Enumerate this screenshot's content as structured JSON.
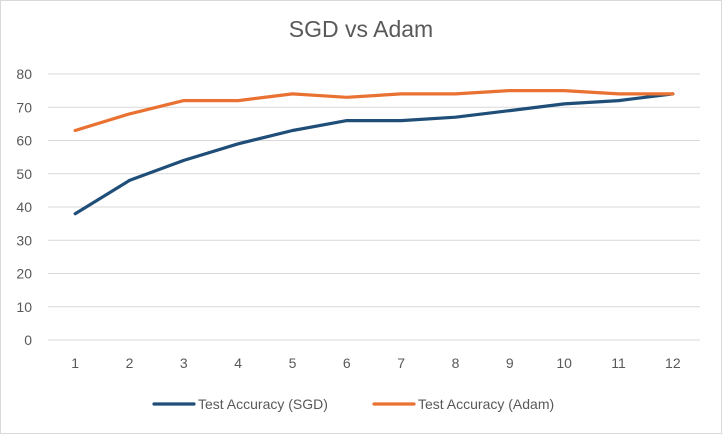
{
  "chart_data": {
    "type": "line",
    "title": "SGD vs Adam",
    "xlabel": "",
    "ylabel": "",
    "x": [
      1,
      2,
      3,
      4,
      5,
      6,
      7,
      8,
      9,
      10,
      11,
      12
    ],
    "ylim": [
      0,
      80
    ],
    "yticks": [
      0,
      10,
      20,
      30,
      40,
      50,
      60,
      70,
      80
    ],
    "grid": "horizontal",
    "legend_position": "bottom",
    "series": [
      {
        "name": "Test Accuracy (SGD)",
        "color": "#1f4e79",
        "values": [
          38,
          48,
          54,
          59,
          63,
          66,
          66,
          67,
          69,
          71,
          72,
          74
        ]
      },
      {
        "name": "Test Accuracy (Adam)",
        "color": "#e97132",
        "values": [
          63,
          68,
          72,
          72,
          74,
          73,
          74,
          74,
          75,
          75,
          74,
          74
        ]
      }
    ]
  }
}
